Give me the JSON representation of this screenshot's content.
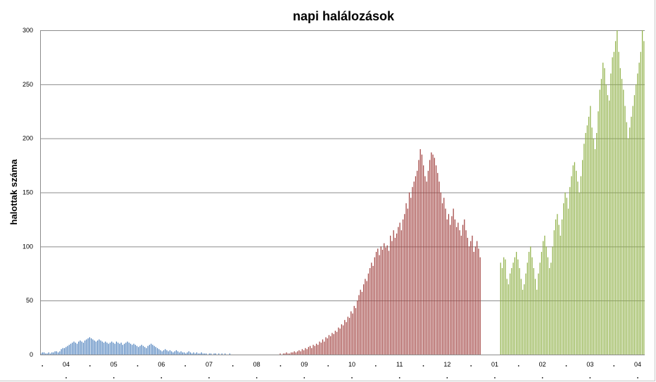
{
  "chart_data": {
    "type": "bar",
    "title": "napi halálozások",
    "ylabel": "halottak száma",
    "xlabel": "",
    "ylim": [
      0,
      300
    ],
    "yticks": [
      0,
      50,
      100,
      150,
      200,
      250,
      300
    ],
    "grid": true,
    "legend": "none",
    "xtick_labels": [
      "04",
      "05",
      "06",
      "07",
      "08",
      "09",
      "10",
      "11",
      "12",
      "01",
      "02",
      "03",
      "04"
    ],
    "colors": {
      "wave1": "#4a7ebb",
      "wave2": "#a0403e",
      "wave3": "#8fb046",
      "grid": "#8c8c8c",
      "axis": "#8c8c8c"
    },
    "waves": [
      {
        "color_key": "wave1",
        "start_day": 0,
        "values": [
          1,
          2,
          2,
          1,
          1,
          2,
          1,
          2,
          2,
          3,
          3,
          2,
          3,
          5,
          6,
          6,
          7,
          8,
          9,
          10,
          11,
          12,
          11,
          10,
          12,
          13,
          12,
          11,
          13,
          14,
          15,
          16,
          15,
          14,
          13,
          12,
          13,
          14,
          13,
          12,
          11,
          12,
          11,
          10,
          11,
          12,
          11,
          10,
          12,
          11,
          10,
          11,
          9,
          10,
          11,
          12,
          11,
          10,
          9,
          10,
          9,
          8,
          7,
          8,
          9,
          8,
          7,
          6,
          8,
          9,
          10,
          9,
          8,
          7,
          6,
          5,
          4,
          3,
          4,
          5,
          4,
          3,
          4,
          3,
          2,
          3,
          4,
          3,
          2,
          3,
          2,
          2,
          1,
          2,
          3,
          2,
          1,
          2,
          1,
          2,
          1,
          1,
          2,
          1,
          1,
          1,
          0,
          1,
          1,
          0,
          1,
          1,
          0,
          1,
          0,
          1,
          0,
          1,
          0,
          0,
          1
        ]
      },
      {
        "color_key": "wave2",
        "start_day": 152,
        "values": [
          1,
          0,
          1,
          1,
          2,
          1,
          1,
          2,
          2,
          3,
          2,
          3,
          4,
          3,
          5,
          4,
          6,
          5,
          7,
          8,
          6,
          9,
          8,
          10,
          9,
          12,
          11,
          14,
          12,
          16,
          15,
          18,
          17,
          20,
          19,
          22,
          21,
          25,
          24,
          28,
          27,
          32,
          30,
          35,
          34,
          40,
          38,
          45,
          43,
          50,
          55,
          60,
          58,
          65,
          70,
          68,
          75,
          80,
          85,
          82,
          90,
          95,
          98,
          92,
          100,
          97,
          103,
          99,
          101,
          96,
          110,
          105,
          115,
          108,
          112,
          118,
          122,
          115,
          125,
          130,
          140,
          135,
          150,
          145,
          155,
          160,
          165,
          170,
          180,
          190,
          185,
          175,
          165,
          160,
          170,
          180,
          187,
          185,
          182,
          175,
          168,
          160,
          150,
          140,
          145,
          135,
          125,
          130,
          120,
          128,
          135,
          125,
          118,
          122,
          115,
          110,
          120,
          125,
          115,
          108,
          100,
          105,
          110,
          95,
          100,
          105,
          98,
          90
        ]
      },
      {
        "color_key": "wave3",
        "start_day": 292,
        "values": [
          85,
          80,
          90,
          88,
          70,
          65,
          75,
          80,
          85,
          90,
          95,
          88,
          80,
          70,
          60,
          65,
          75,
          85,
          95,
          100,
          90,
          80,
          70,
          60,
          75,
          85,
          95,
          105,
          110,
          100,
          90,
          80,
          85,
          100,
          115,
          125,
          130,
          120,
          110,
          125,
          140,
          150,
          145,
          135,
          155,
          165,
          175,
          178,
          170,
          160,
          150,
          165,
          180,
          195,
          205,
          212,
          220,
          230,
          210,
          200,
          190,
          205,
          225,
          245,
          255,
          270,
          265,
          250,
          240,
          235,
          260,
          275,
          280,
          290,
          300,
          280,
          265,
          255,
          245,
          230,
          215,
          200,
          210,
          220,
          230,
          240,
          250,
          260,
          270,
          280,
          300,
          290
        ]
      }
    ]
  }
}
